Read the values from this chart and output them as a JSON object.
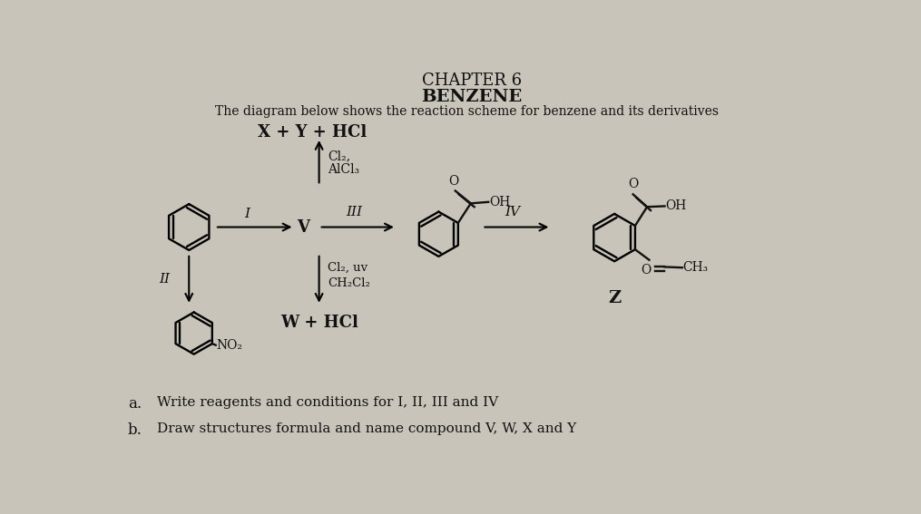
{
  "title_chapter": "CHAPTER 6",
  "title_main": "BENZENE",
  "subtitle": "The diagram below shows the reaction scheme for benzene and its derivatives",
  "top_eq": "X + Y + HCl",
  "background_color": "#c8c4ba",
  "text_color": "#111111",
  "label_I": "I",
  "label_II": "II",
  "label_III": "III",
  "label_IV": "IV",
  "label_V": "V",
  "label_Z": "Z",
  "label_W": "W + HCl",
  "cl2_alcl3_line1": "Cl₂,",
  "cl2_alcl3_line2": "AlCl₃",
  "cl2_uv_line1": "Cl₂, uv",
  "cl2_uv_line2": "CH₂Cl₂",
  "OH": "OH",
  "O_label": "O",
  "CH3": "CH₃",
  "NO2": "NO₂",
  "qa": "a.",
  "qa_text": "Write reagents and conditions for I, II, III and IV",
  "qb": "b.",
  "qb_text": "Draw structures formula and name compound V, W, X and Y",
  "fig_width": 10.15,
  "fig_height": 5.67,
  "dpi": 100
}
